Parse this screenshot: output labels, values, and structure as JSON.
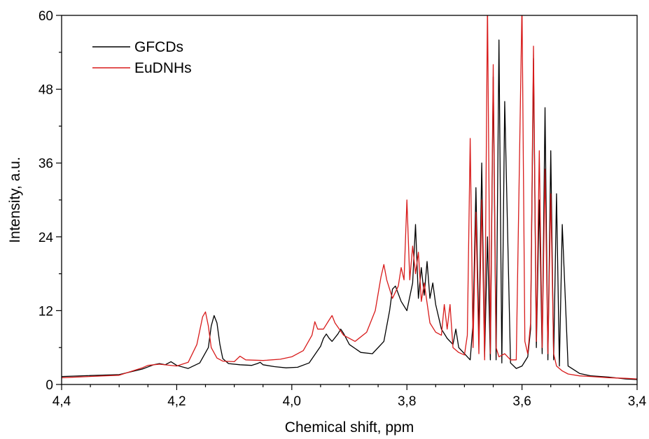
{
  "chart_data": {
    "type": "line",
    "title": "",
    "xlabel": "Chemical shift, ppm",
    "ylabel": "Intensity, a.u.",
    "xlim": [
      4.4,
      3.4
    ],
    "ylim": [
      0,
      60
    ],
    "x_reversed": true,
    "x_ticks": [
      4.4,
      4.2,
      4.0,
      3.8,
      3.6,
      3.4
    ],
    "x_tick_labels": [
      "4,4",
      "4,2",
      "4,0",
      "3,8",
      "3,6",
      "3,4"
    ],
    "y_ticks": [
      0,
      12,
      24,
      36,
      48,
      60
    ],
    "y_tick_labels": [
      "0",
      "12",
      "24",
      "36",
      "48",
      "60"
    ],
    "grid": false,
    "legend_position": "top-left",
    "series": [
      {
        "name": "GFCDs",
        "color": "#000000",
        "x": [
          4.4,
          4.3,
          4.26,
          4.24,
          4.23,
          4.22,
          4.21,
          4.2,
          4.18,
          4.16,
          4.145,
          4.14,
          4.135,
          4.13,
          4.125,
          4.12,
          4.11,
          4.09,
          4.07,
          4.06,
          4.055,
          4.05,
          4.03,
          4.01,
          3.99,
          3.97,
          3.95,
          3.945,
          3.94,
          3.935,
          3.93,
          3.92,
          3.915,
          3.91,
          3.9,
          3.88,
          3.86,
          3.84,
          3.83,
          3.825,
          3.82,
          3.81,
          3.8,
          3.79,
          3.785,
          3.78,
          3.775,
          3.77,
          3.765,
          3.76,
          3.755,
          3.75,
          3.74,
          3.73,
          3.72,
          3.715,
          3.71,
          3.7,
          3.69,
          3.685,
          3.68,
          3.675,
          3.67,
          3.665,
          3.66,
          3.655,
          3.65,
          3.645,
          3.64,
          3.635,
          3.63,
          3.62,
          3.61,
          3.6,
          3.59,
          3.585,
          3.58,
          3.575,
          3.57,
          3.565,
          3.56,
          3.555,
          3.55,
          3.545,
          3.54,
          3.535,
          3.53,
          3.52,
          3.5,
          3.48,
          3.45,
          3.42,
          3.4
        ],
        "values": [
          1.3,
          1.6,
          2.5,
          3.2,
          3.4,
          3.2,
          3.7,
          3.1,
          2.6,
          3.5,
          6.0,
          9.5,
          11.2,
          10.0,
          6.5,
          4.2,
          3.4,
          3.2,
          3.1,
          3.4,
          3.6,
          3.2,
          2.9,
          2.7,
          2.8,
          3.5,
          6.2,
          7.5,
          8.2,
          7.5,
          7.0,
          8.2,
          9.0,
          8.3,
          6.5,
          5.2,
          5.0,
          7.0,
          12.0,
          15.5,
          16.0,
          13.5,
          12.0,
          16.5,
          26.0,
          14.0,
          19.0,
          14.5,
          20.0,
          14.0,
          16.5,
          13.0,
          9.0,
          7.5,
          6.5,
          9.0,
          6.0,
          5.0,
          4.0,
          10.0,
          32.0,
          8.0,
          36.0,
          4.5,
          24.0,
          4.0,
          50.0,
          4.0,
          56.0,
          3.5,
          46.0,
          3.5,
          2.6,
          3.0,
          4.5,
          9.0,
          53.0,
          6.0,
          30.0,
          5.0,
          45.0,
          4.0,
          38.0,
          4.0,
          31.0,
          3.0,
          26.0,
          3.0,
          1.8,
          1.4,
          1.2,
          0.9,
          0.8
        ]
      },
      {
        "name": "EuDNHs",
        "color": "#d81b1b",
        "x": [
          4.4,
          4.3,
          4.26,
          4.25,
          4.23,
          4.2,
          4.18,
          4.165,
          4.155,
          4.15,
          4.145,
          4.14,
          4.13,
          4.12,
          4.1,
          4.09,
          4.085,
          4.08,
          4.05,
          4.02,
          4.0,
          3.98,
          3.965,
          3.96,
          3.955,
          3.945,
          3.935,
          3.93,
          3.925,
          3.91,
          3.89,
          3.87,
          3.855,
          3.845,
          3.84,
          3.835,
          3.825,
          3.815,
          3.81,
          3.805,
          3.8,
          3.795,
          3.79,
          3.785,
          3.78,
          3.775,
          3.77,
          3.76,
          3.75,
          3.74,
          3.735,
          3.73,
          3.725,
          3.72,
          3.71,
          3.7,
          3.695,
          3.69,
          3.685,
          3.68,
          3.675,
          3.67,
          3.665,
          3.66,
          3.655,
          3.65,
          3.645,
          3.64,
          3.63,
          3.62,
          3.61,
          3.6,
          3.595,
          3.59,
          3.585,
          3.58,
          3.575,
          3.57,
          3.565,
          3.56,
          3.555,
          3.55,
          3.545,
          3.54,
          3.53,
          3.52,
          3.5,
          3.48,
          3.45,
          3.42,
          3.4
        ],
        "values": [
          1.1,
          1.5,
          2.7,
          3.1,
          3.3,
          3.0,
          3.6,
          6.5,
          11.0,
          11.8,
          9.5,
          6.0,
          4.3,
          3.8,
          3.7,
          4.6,
          4.3,
          4.0,
          3.9,
          4.1,
          4.5,
          5.5,
          8.0,
          10.2,
          9.0,
          9.0,
          10.5,
          11.2,
          10.0,
          8.0,
          7.0,
          8.5,
          12.0,
          17.5,
          19.5,
          17.0,
          14.0,
          16.0,
          19.0,
          17.0,
          30.0,
          17.0,
          22.5,
          18.0,
          21.5,
          13.5,
          16.5,
          10.0,
          8.5,
          8.0,
          13.0,
          9.0,
          13.0,
          6.0,
          5.2,
          4.8,
          8.0,
          40.0,
          6.0,
          28.0,
          5.0,
          30.0,
          4.0,
          62.0,
          5.0,
          52.0,
          6.0,
          4.5,
          5.0,
          4.0,
          4.0,
          62.0,
          7.0,
          5.0,
          10.0,
          55.0,
          7.0,
          38.0,
          6.0,
          35.0,
          5.0,
          31.0,
          5.0,
          3.0,
          2.2,
          1.7,
          1.4,
          1.3,
          1.1,
          1.0,
          0.9
        ]
      }
    ]
  }
}
